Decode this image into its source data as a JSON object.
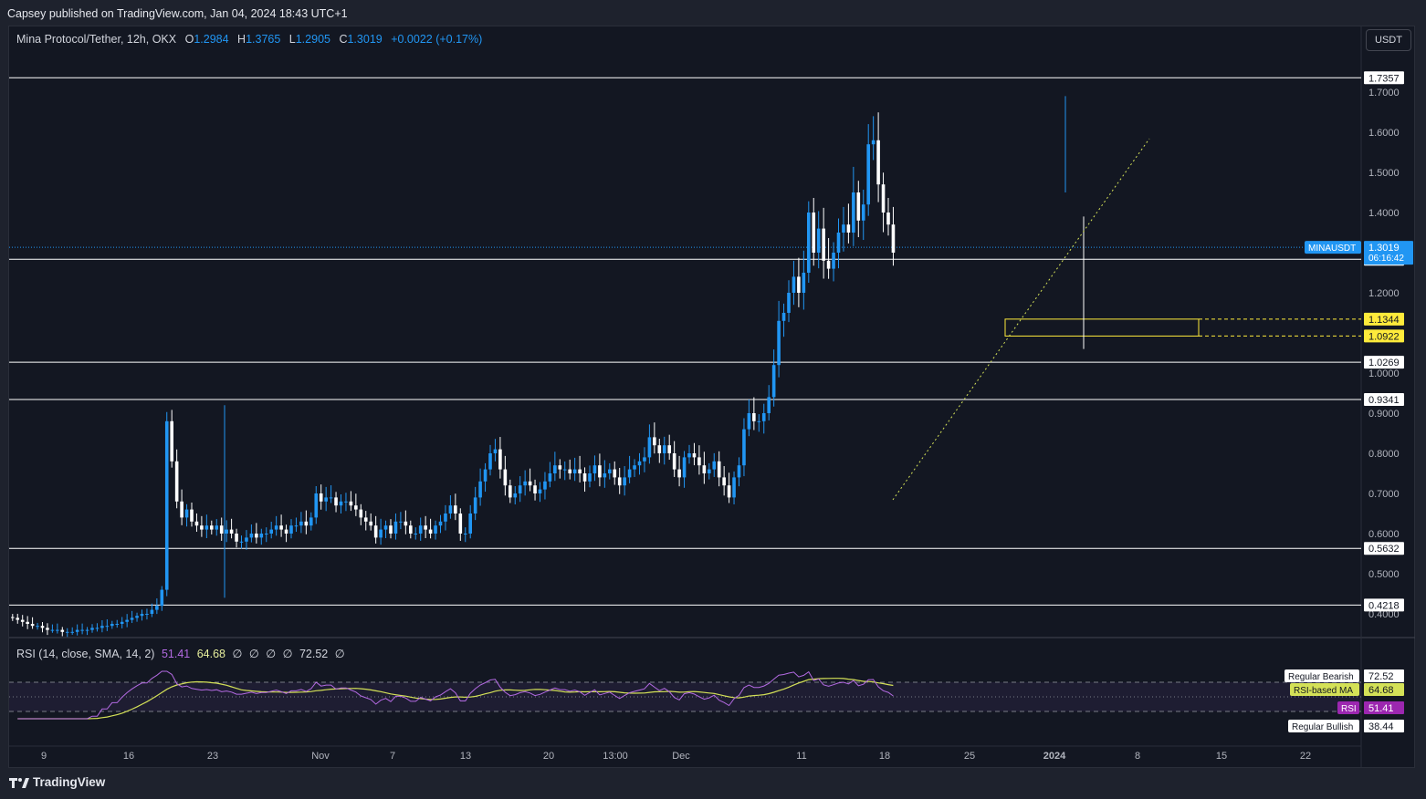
{
  "published_line": "Capsey published on TradingView.com, Jan 04, 2024 18:43 UTC+1",
  "legend": {
    "symbol": "Mina Protocol/Tether, 12h, OKX",
    "o_label": "O",
    "o": "1.2984",
    "h_label": "H",
    "h": "1.3765",
    "l_label": "L",
    "l": "1.2905",
    "c_label": "C",
    "c": "1.3019",
    "change": "+0.0022 (+0.17%)"
  },
  "currency_button": "USDT",
  "price_axis_ticks": [
    "1.7000",
    "1.6000",
    "1.5000",
    "1.4000",
    "1.2000",
    "1.0000",
    "0.9000",
    "0.8000",
    "0.7000",
    "0.6000",
    "0.5000",
    "0.4000"
  ],
  "horizontal_levels": [
    "1.7357",
    "1.2835",
    "1.0269",
    "0.9341",
    "0.5632",
    "0.4218"
  ],
  "zone_levels": [
    "1.1344",
    "1.0922"
  ],
  "current_price": {
    "symbol": "MINAUSDT",
    "price": "1.3019",
    "countdown": "06:16:42"
  },
  "time_axis_labels": [
    "9",
    "16",
    "23",
    "Nov",
    "7",
    "13",
    "20",
    "13:00",
    "Dec",
    "11",
    "18",
    "25",
    "2024",
    "8",
    "15",
    "22"
  ],
  "rsi": {
    "legend_name": "RSI (14, close, SMA, 14, 2)",
    "rsi_value": "51.41",
    "ma_value": "64.68",
    "null_symbols": [
      "∅",
      "∅",
      "∅",
      "∅"
    ],
    "bearish_value": "72.52",
    "trailing_null": "∅",
    "axis_top": "80.00",
    "labels": {
      "regular_bearish": "Regular Bearish",
      "rsi_based_ma": "RSI-based MA",
      "rsi": "RSI",
      "regular_bullish": "Regular Bullish"
    },
    "label_values": {
      "bearish": "72.52",
      "ma": "64.68",
      "rsi": "51.41",
      "bullish": "38.44"
    }
  },
  "footer_brand": "TradingView",
  "colors": {
    "background": "#131722",
    "up": "#2196f3",
    "down": "#ffffff",
    "rsi": "#b36ae2",
    "rsi_ma": "#d4e157",
    "zone": "#ffeb3b",
    "accent_label": "#2196f3"
  },
  "chart_data": {
    "type": "candlestick",
    "title": "Mina Protocol/Tether, 12h, OKX",
    "ylim": [
      0.38,
      1.75
    ],
    "last": {
      "open": 1.2984,
      "high": 1.3765,
      "low": 1.2905,
      "close": 1.3019
    },
    "key_levels": [
      1.7357,
      1.2835,
      1.0269,
      0.9341,
      0.5632,
      0.4218
    ],
    "zone": [
      1.0922,
      1.1344
    ],
    "approx_closes": [
      0.39,
      0.385,
      0.38,
      0.375,
      0.37,
      0.37,
      0.365,
      0.36,
      0.36,
      0.36,
      0.355,
      0.355,
      0.355,
      0.36,
      0.36,
      0.36,
      0.365,
      0.365,
      0.37,
      0.37,
      0.375,
      0.375,
      0.38,
      0.385,
      0.39,
      0.395,
      0.4,
      0.4,
      0.41,
      0.42,
      0.46,
      0.88,
      0.78,
      0.68,
      0.64,
      0.66,
      0.63,
      0.62,
      0.61,
      0.62,
      0.61,
      0.62,
      0.6,
      0.61,
      0.6,
      0.58,
      0.58,
      0.59,
      0.6,
      0.59,
      0.6,
      0.6,
      0.61,
      0.62,
      0.61,
      0.6,
      0.62,
      0.62,
      0.63,
      0.62,
      0.64,
      0.7,
      0.68,
      0.69,
      0.69,
      0.67,
      0.68,
      0.68,
      0.67,
      0.66,
      0.64,
      0.63,
      0.62,
      0.59,
      0.61,
      0.62,
      0.6,
      0.63,
      0.63,
      0.62,
      0.6,
      0.6,
      0.62,
      0.61,
      0.6,
      0.62,
      0.63,
      0.65,
      0.67,
      0.65,
      0.6,
      0.6,
      0.65,
      0.69,
      0.73,
      0.76,
      0.8,
      0.81,
      0.76,
      0.72,
      0.69,
      0.7,
      0.72,
      0.73,
      0.72,
      0.7,
      0.71,
      0.73,
      0.75,
      0.77,
      0.76,
      0.76,
      0.75,
      0.76,
      0.75,
      0.73,
      0.75,
      0.77,
      0.74,
      0.75,
      0.76,
      0.74,
      0.72,
      0.74,
      0.76,
      0.77,
      0.78,
      0.79,
      0.84,
      0.82,
      0.8,
      0.82,
      0.8,
      0.76,
      0.74,
      0.79,
      0.8,
      0.79,
      0.77,
      0.75,
      0.76,
      0.78,
      0.74,
      0.72,
      0.69,
      0.74,
      0.77,
      0.86,
      0.9,
      0.88,
      0.88,
      0.9,
      0.94,
      1.02,
      1.13,
      1.15,
      1.2,
      1.24,
      1.2,
      1.25,
      1.4,
      1.3,
      1.36,
      1.28,
      1.26,
      1.3,
      1.35,
      1.37,
      1.35,
      1.45,
      1.38,
      1.42,
      1.57,
      1.58,
      1.47,
      1.4,
      1.37,
      1.3
    ]
  }
}
